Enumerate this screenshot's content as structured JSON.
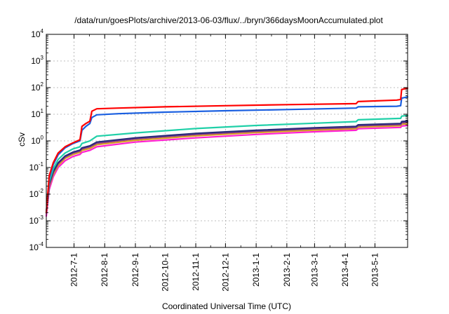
{
  "chart_data": {
    "type": "line",
    "title": "/data/run/goesPlots/archive/2013-06-03/flux/../bryn/366daysMoonAccumulated.plot",
    "xlabel": "Coordinated Universal Time (UTC)",
    "ylabel": "cSv",
    "y_scale": "log",
    "ylim": [
      0.0001,
      10000
    ],
    "y_ticks": [
      {
        "base": "10",
        "exp": "-4",
        "value": 0.0001
      },
      {
        "base": "10",
        "exp": "-3",
        "value": 0.001
      },
      {
        "base": "10",
        "exp": "-2",
        "value": 0.01
      },
      {
        "base": "10",
        "exp": "-1",
        "value": 0.1
      },
      {
        "base": "10",
        "exp": "0",
        "value": 1
      },
      {
        "base": "10",
        "exp": "1",
        "value": 10
      },
      {
        "base": "10",
        "exp": "2",
        "value": 100
      },
      {
        "base": "10",
        "exp": "3",
        "value": 1000
      },
      {
        "base": "10",
        "exp": "4",
        "value": 10000
      }
    ],
    "xlim": [
      "2012-06-03",
      "2013-06-03"
    ],
    "x_ticks": [
      "2012-7-1",
      "2012-8-1",
      "2012-9-1",
      "2012-10-1",
      "2012-11-1",
      "2012-12-1",
      "2013-1-1",
      "2013-2-1",
      "2013-3-1",
      "2013-4-1",
      "2013-5-1"
    ],
    "grid": true,
    "series": [
      {
        "color": "#ff0000",
        "points": [
          [
            "2012-06-03",
            0.002
          ],
          [
            "2012-06-06",
            0.05
          ],
          [
            "2012-06-10",
            0.15
          ],
          [
            "2012-06-15",
            0.35
          ],
          [
            "2012-06-22",
            0.6
          ],
          [
            "2012-06-30",
            0.85
          ],
          [
            "2012-07-07",
            1.1
          ],
          [
            "2012-07-09",
            3.5
          ],
          [
            "2012-07-13",
            4.5
          ],
          [
            "2012-07-17",
            5.5
          ],
          [
            "2012-07-19",
            13
          ],
          [
            "2012-07-24",
            16
          ],
          [
            "2012-08-15",
            17
          ],
          [
            "2012-10-01",
            19
          ],
          [
            "2012-12-01",
            21
          ],
          [
            "2013-02-01",
            23
          ],
          [
            "2013-04-12",
            25
          ],
          [
            "2013-04-14",
            30
          ],
          [
            "2013-05-23",
            34
          ],
          [
            "2013-05-27",
            36
          ],
          [
            "2013-05-28",
            85
          ],
          [
            "2013-06-03",
            95
          ]
        ]
      },
      {
        "color": "#1a5fe0",
        "points": [
          [
            "2012-06-03",
            0.002
          ],
          [
            "2012-06-06",
            0.04
          ],
          [
            "2012-06-10",
            0.13
          ],
          [
            "2012-06-15",
            0.3
          ],
          [
            "2012-06-22",
            0.55
          ],
          [
            "2012-06-30",
            0.8
          ],
          [
            "2012-07-07",
            1.0
          ],
          [
            "2012-07-09",
            2.5
          ],
          [
            "2012-07-13",
            3.5
          ],
          [
            "2012-07-17",
            4.5
          ],
          [
            "2012-07-19",
            7.5
          ],
          [
            "2012-07-24",
            9.5
          ],
          [
            "2012-08-15",
            10.5
          ],
          [
            "2012-10-01",
            12
          ],
          [
            "2012-12-01",
            13.5
          ],
          [
            "2013-02-01",
            15
          ],
          [
            "2013-04-12",
            17
          ],
          [
            "2013-04-14",
            19
          ],
          [
            "2013-05-23",
            20
          ],
          [
            "2013-05-27",
            21
          ],
          [
            "2013-05-28",
            40
          ],
          [
            "2013-06-03",
            45
          ]
        ]
      },
      {
        "color": "#20d0a8",
        "points": [
          [
            "2012-06-03",
            0.002
          ],
          [
            "2012-06-06",
            0.03
          ],
          [
            "2012-06-10",
            0.09
          ],
          [
            "2012-06-15",
            0.2
          ],
          [
            "2012-06-22",
            0.35
          ],
          [
            "2012-06-30",
            0.5
          ],
          [
            "2012-07-07",
            0.6
          ],
          [
            "2012-07-09",
            0.8
          ],
          [
            "2012-07-17",
            1.0
          ],
          [
            "2012-07-24",
            1.5
          ],
          [
            "2012-09-01",
            2.0
          ],
          [
            "2012-11-01",
            2.9
          ],
          [
            "2013-01-01",
            3.8
          ],
          [
            "2013-03-01",
            4.6
          ],
          [
            "2013-04-12",
            5.3
          ],
          [
            "2013-04-14",
            6.2
          ],
          [
            "2013-05-27",
            7.0
          ],
          [
            "2013-05-28",
            8.5
          ],
          [
            "2013-06-03",
            9.0
          ]
        ]
      },
      {
        "color": "#2a2a7a",
        "points": [
          [
            "2012-06-03",
            0.002
          ],
          [
            "2012-06-06",
            0.025
          ],
          [
            "2012-06-10",
            0.07
          ],
          [
            "2012-06-15",
            0.15
          ],
          [
            "2012-06-22",
            0.27
          ],
          [
            "2012-06-30",
            0.38
          ],
          [
            "2012-07-07",
            0.45
          ],
          [
            "2012-07-09",
            0.55
          ],
          [
            "2012-07-17",
            0.65
          ],
          [
            "2012-07-24",
            0.9
          ],
          [
            "2012-09-01",
            1.3
          ],
          [
            "2012-11-01",
            1.9
          ],
          [
            "2013-01-01",
            2.5
          ],
          [
            "2013-03-01",
            3.1
          ],
          [
            "2013-04-12",
            3.5
          ],
          [
            "2013-04-14",
            4.0
          ],
          [
            "2013-05-27",
            4.5
          ],
          [
            "2013-05-28",
            5.3
          ],
          [
            "2013-06-03",
            5.6
          ]
        ]
      },
      {
        "color": "#8a3a8a",
        "points": [
          [
            "2012-06-03",
            0.002
          ],
          [
            "2012-06-06",
            0.022
          ],
          [
            "2012-06-10",
            0.065
          ],
          [
            "2012-06-15",
            0.14
          ],
          [
            "2012-06-22",
            0.25
          ],
          [
            "2012-06-30",
            0.35
          ],
          [
            "2012-07-07",
            0.42
          ],
          [
            "2012-07-09",
            0.5
          ],
          [
            "2012-07-17",
            0.6
          ],
          [
            "2012-07-24",
            0.82
          ],
          [
            "2012-09-01",
            1.2
          ],
          [
            "2012-11-01",
            1.75
          ],
          [
            "2013-01-01",
            2.3
          ],
          [
            "2013-03-01",
            2.85
          ],
          [
            "2013-04-12",
            3.2
          ],
          [
            "2013-04-14",
            3.7
          ],
          [
            "2013-05-27",
            4.1
          ],
          [
            "2013-05-28",
            4.8
          ],
          [
            "2013-06-03",
            5.0
          ]
        ]
      },
      {
        "color": "#d8a020",
        "points": [
          [
            "2012-06-03",
            0.002
          ],
          [
            "2012-06-06",
            0.02
          ],
          [
            "2012-06-10",
            0.055
          ],
          [
            "2012-06-15",
            0.12
          ],
          [
            "2012-06-22",
            0.22
          ],
          [
            "2012-06-30",
            0.31
          ],
          [
            "2012-07-07",
            0.37
          ],
          [
            "2012-07-09",
            0.44
          ],
          [
            "2012-07-17",
            0.52
          ],
          [
            "2012-07-24",
            0.72
          ],
          [
            "2012-09-01",
            1.05
          ],
          [
            "2012-11-01",
            1.55
          ],
          [
            "2013-01-01",
            2.05
          ],
          [
            "2013-03-01",
            2.55
          ],
          [
            "2013-04-12",
            2.85
          ],
          [
            "2013-04-14",
            3.3
          ],
          [
            "2013-05-27",
            3.7
          ],
          [
            "2013-05-28",
            4.2
          ],
          [
            "2013-06-03",
            4.4
          ]
        ]
      },
      {
        "color": "#ff20d0",
        "points": [
          [
            "2012-06-03",
            0.0015
          ],
          [
            "2012-06-06",
            0.015
          ],
          [
            "2012-06-10",
            0.045
          ],
          [
            "2012-06-15",
            0.1
          ],
          [
            "2012-06-22",
            0.18
          ],
          [
            "2012-06-30",
            0.26
          ],
          [
            "2012-07-07",
            0.31
          ],
          [
            "2012-07-09",
            0.37
          ],
          [
            "2012-07-17",
            0.44
          ],
          [
            "2012-07-24",
            0.6
          ],
          [
            "2012-09-01",
            0.9
          ],
          [
            "2012-11-01",
            1.3
          ],
          [
            "2013-01-01",
            1.75
          ],
          [
            "2013-03-01",
            2.2
          ],
          [
            "2013-04-12",
            2.5
          ],
          [
            "2013-04-14",
            2.85
          ],
          [
            "2013-05-27",
            3.2
          ],
          [
            "2013-05-28",
            3.6
          ],
          [
            "2013-06-03",
            3.8
          ]
        ]
      }
    ]
  }
}
